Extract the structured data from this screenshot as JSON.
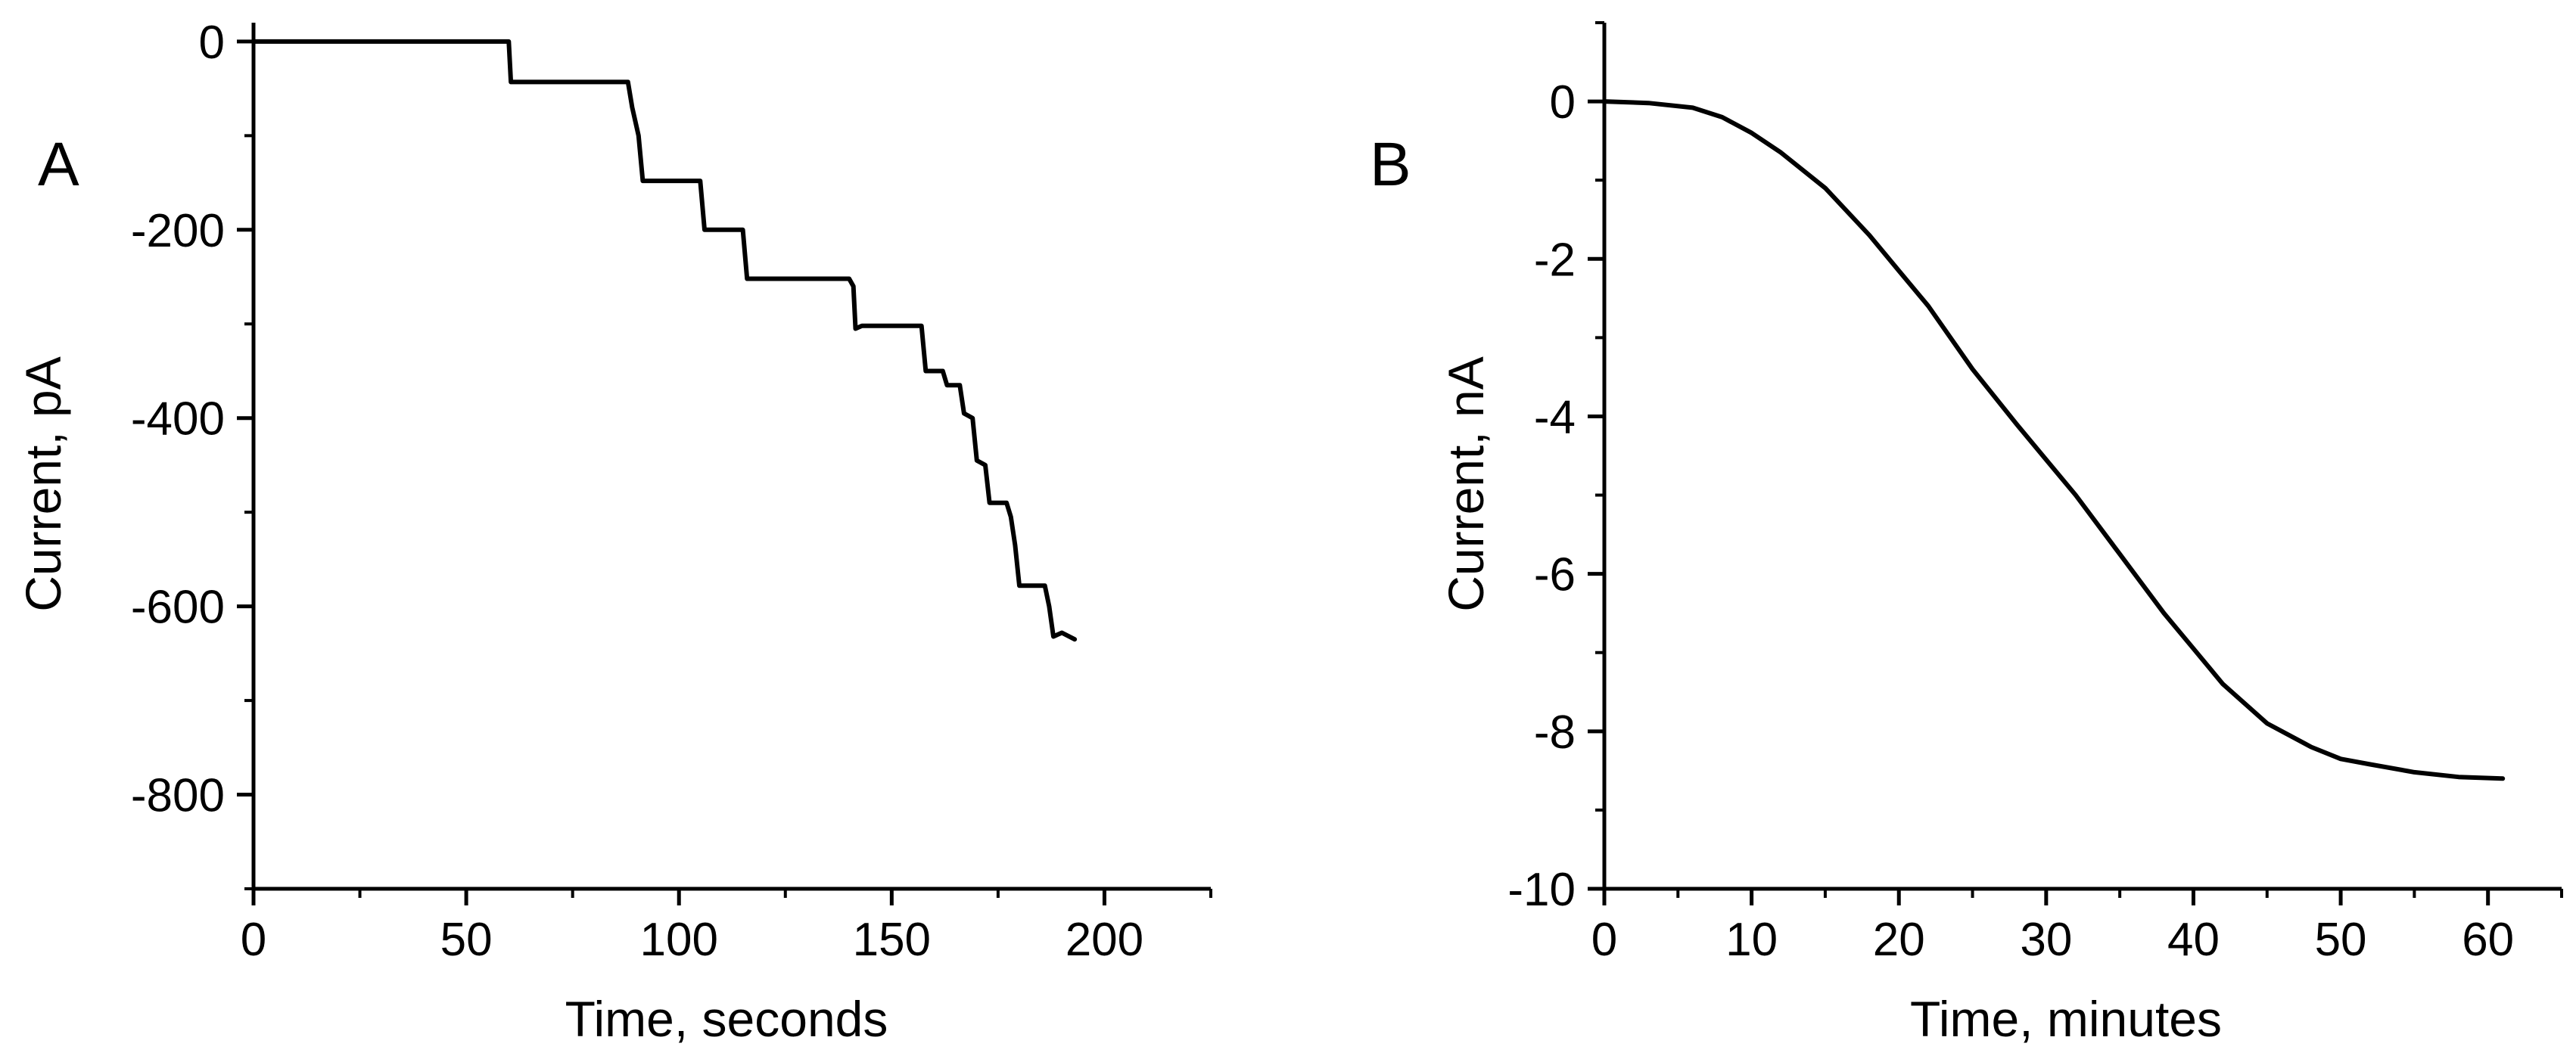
{
  "chart_data": [
    {
      "type": "line",
      "panel_label": "A",
      "xlabel": "Time, seconds",
      "ylabel": "Current, pA",
      "xlim": [
        0,
        225
      ],
      "ylim": [
        -900,
        20
      ],
      "x_ticks": [
        0,
        50,
        100,
        150,
        200
      ],
      "x_tick_labels": [
        "0",
        "50",
        "100",
        "150",
        "200"
      ],
      "x_minor_ticks": [
        25,
        75,
        125,
        175,
        225
      ],
      "y_ticks": [
        0,
        -200,
        -400,
        -600,
        -800
      ],
      "y_tick_labels": [
        "0",
        "-200",
        "-400",
        "-600",
        "-800"
      ],
      "y_minor_ticks": [
        -100,
        -300,
        -500,
        -700,
        -900
      ],
      "grid": false,
      "series": [
        {
          "name": "current",
          "color": "#000000",
          "x": [
            0,
            60,
            60.5,
            88,
            89,
            90.5,
            91.5,
            105,
            106,
            115,
            116,
            140,
            141,
            141.5,
            143,
            157,
            158,
            162,
            163,
            166,
            167,
            169,
            170,
            172,
            173,
            177,
            178,
            179,
            180,
            186,
            187,
            188,
            190,
            193
          ],
          "y": [
            0,
            0,
            -43,
            -43,
            -70,
            -100,
            -148,
            -148,
            -200,
            -200,
            -252,
            -252,
            -260,
            -305,
            -302,
            -302,
            -350,
            -350,
            -365,
            -365,
            -395,
            -400,
            -445,
            -450,
            -490,
            -490,
            -505,
            -535,
            -578,
            -578,
            -600,
            -632,
            -628,
            -635
          ]
        }
      ]
    },
    {
      "type": "line",
      "panel_label": "B",
      "xlabel": "Time, minutes",
      "ylabel": "Current, nA",
      "xlim": [
        0,
        65
      ],
      "ylim": [
        -10,
        1
      ],
      "x_ticks": [
        0,
        10,
        20,
        30,
        40,
        50,
        60
      ],
      "x_tick_labels": [
        "0",
        "10",
        "20",
        "30",
        "40",
        "50",
        "60"
      ],
      "x_minor_ticks": [
        5,
        15,
        25,
        35,
        45,
        55,
        65
      ],
      "y_ticks": [
        0,
        -2,
        -4,
        -6,
        -8,
        -10
      ],
      "y_tick_labels": [
        "0",
        "-2",
        "-4",
        "-6",
        "-8",
        "-10"
      ],
      "y_minor_ticks": [
        1,
        -1,
        -3,
        -5,
        -7,
        -9
      ],
      "grid": false,
      "series": [
        {
          "name": "current",
          "color": "#000000",
          "x": [
            0,
            3,
            6,
            8,
            10,
            12,
            15,
            18,
            20,
            22,
            25,
            28,
            30,
            32,
            35,
            38,
            40,
            42,
            45,
            48,
            50,
            52,
            55,
            58,
            61
          ],
          "y": [
            0,
            -0.02,
            -0.08,
            -0.2,
            -0.4,
            -0.65,
            -1.1,
            -1.7,
            -2.15,
            -2.6,
            -3.4,
            -4.1,
            -4.55,
            -5.0,
            -5.75,
            -6.5,
            -6.95,
            -7.4,
            -7.9,
            -8.2,
            -8.35,
            -8.42,
            -8.52,
            -8.58,
            -8.6
          ]
        }
      ]
    }
  ]
}
